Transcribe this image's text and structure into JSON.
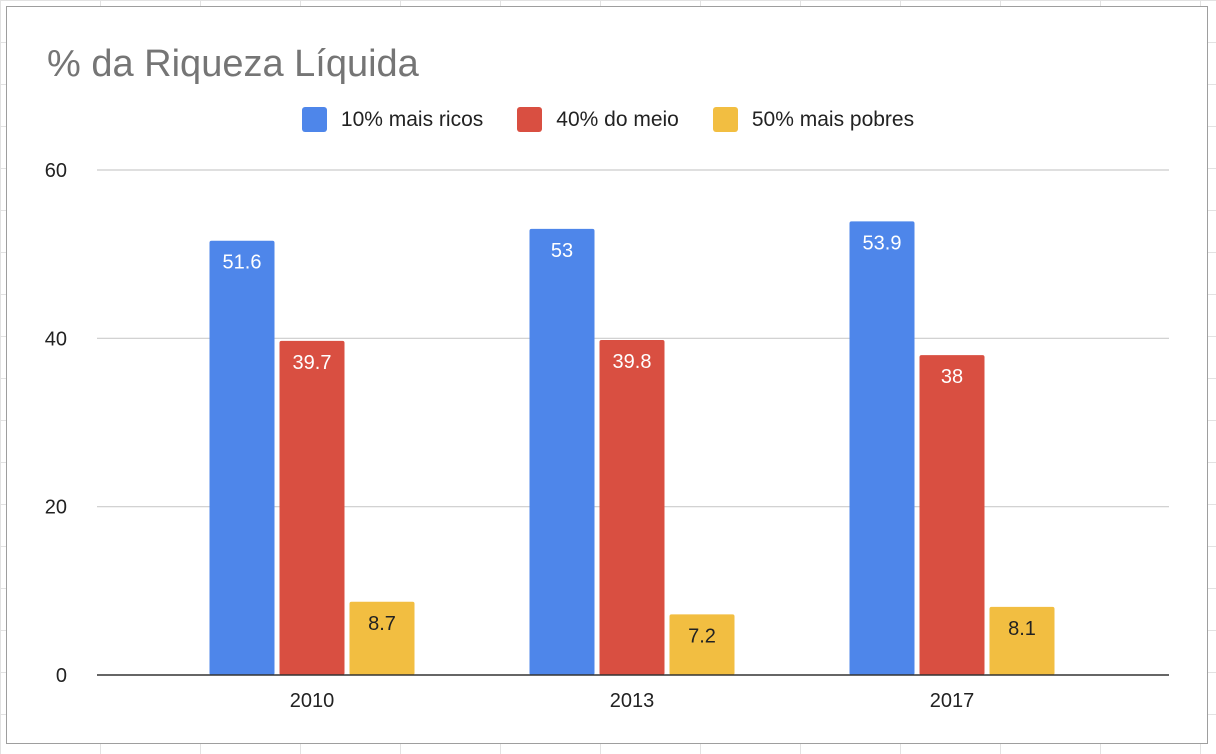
{
  "chart_data": {
    "type": "bar",
    "title": "% da Riqueza Líquida",
    "categories": [
      "2010",
      "2013",
      "2017"
    ],
    "series": [
      {
        "name": "10% mais ricos",
        "values": [
          51.6,
          53,
          53.9
        ],
        "color": "#4e86ea",
        "label_color": "#ffffff"
      },
      {
        "name": "40% do meio",
        "values": [
          39.7,
          39.8,
          38
        ],
        "color": "#d94f41",
        "label_color": "#ffffff"
      },
      {
        "name": "50% mais pobres",
        "values": [
          8.7,
          7.2,
          8.1
        ],
        "color": "#f2be41",
        "label_color": "#222222"
      }
    ],
    "data_labels": [
      [
        "51.6",
        "53",
        "53.9"
      ],
      [
        "39.7",
        "39.8",
        "38"
      ],
      [
        "8.7",
        "7.2",
        "8.1"
      ]
    ],
    "ylim": [
      0,
      60
    ],
    "yticks": [
      "0",
      "20",
      "40",
      "60"
    ],
    "ytick_values": [
      0,
      20,
      40,
      60
    ],
    "xlabel": "",
    "ylabel": "",
    "grid": true,
    "legend_position": "top-center"
  }
}
